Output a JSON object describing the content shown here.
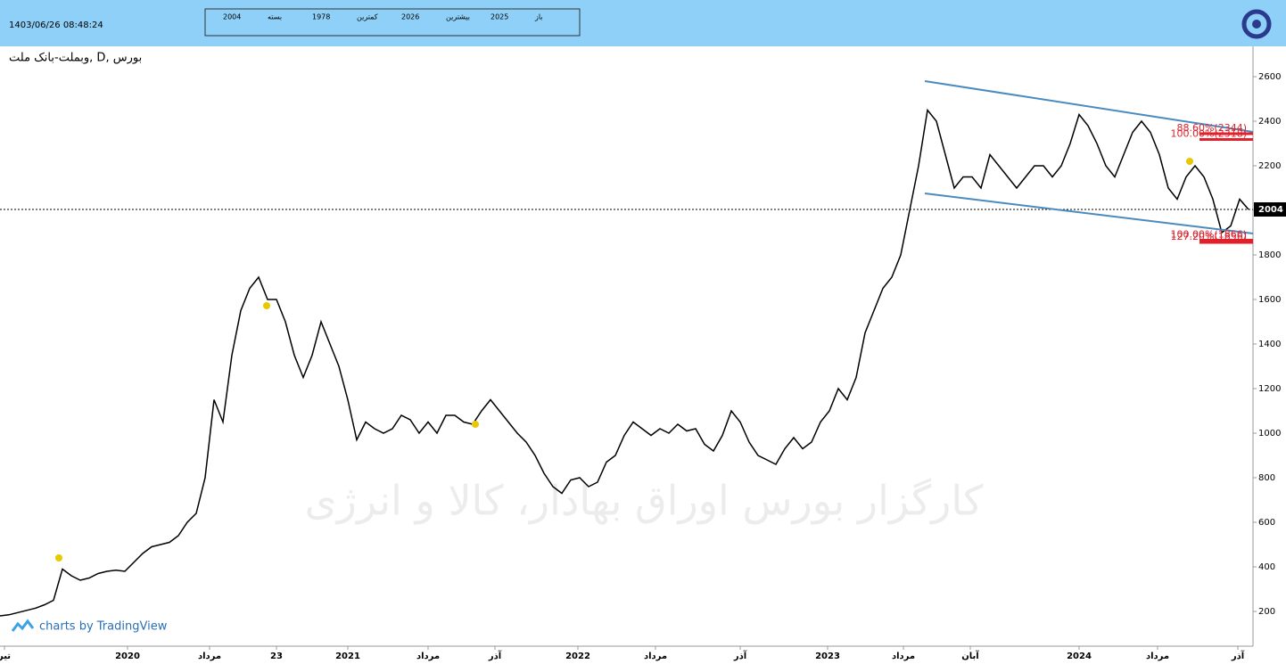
{
  "header": {
    "datetime": "1403/06/26 08:48:24",
    "fields": [
      "2004",
      "بسته",
      "1978",
      "کمترین",
      "2026",
      "بیشترین",
      "2025",
      "باز"
    ]
  },
  "chart_data": {
    "type": "line",
    "title": "وبملت-بانک ملت, D, بورس",
    "watermark": "کارگزار بورس اوراق بهادار، کالا و انرژی",
    "credit": "charts by TradingView",
    "x": [
      0,
      1,
      2,
      3,
      4,
      5,
      6,
      7,
      8,
      9,
      10,
      11,
      12,
      13,
      14,
      15,
      16,
      17,
      18,
      19,
      20,
      21,
      22,
      23,
      24,
      25,
      26,
      27,
      28,
      29,
      30,
      31,
      32,
      33,
      34,
      35,
      36,
      37,
      38,
      39,
      40,
      41,
      42,
      43,
      44,
      45,
      46,
      47,
      48,
      49,
      50,
      51,
      52,
      53,
      54,
      55,
      56,
      57,
      58,
      59,
      60,
      61,
      62,
      63,
      64,
      65,
      66,
      67,
      68,
      69,
      70,
      71,
      72,
      73,
      74,
      75,
      76,
      77,
      78,
      79,
      80,
      81,
      82,
      83,
      84,
      85,
      86,
      87,
      88,
      89,
      90,
      91,
      92,
      93,
      94,
      95,
      96,
      97,
      98,
      99,
      100,
      101,
      102,
      103,
      104,
      105,
      106,
      107,
      108,
      109,
      110,
      111,
      112,
      113,
      114,
      115,
      116,
      117,
      118,
      119,
      120,
      121,
      122,
      123,
      124,
      125,
      126,
      127,
      128,
      129,
      130,
      131,
      132,
      133,
      134,
      135,
      136,
      137,
      138,
      139,
      140
    ],
    "series": [
      {
        "name": "وبملت",
        "color": "#000000",
        "values": [
          180,
          185,
          195,
          205,
          215,
          230,
          250,
          390,
          360,
          340,
          350,
          370,
          380,
          385,
          380,
          420,
          460,
          490,
          500,
          510,
          540,
          600,
          640,
          800,
          1150,
          1050,
          1350,
          1550,
          1650,
          1700,
          1600,
          1600,
          1500,
          1350,
          1250,
          1350,
          1500,
          1400,
          1300,
          1150,
          970,
          1050,
          1020,
          1000,
          1020,
          1080,
          1060,
          1000,
          1050,
          1000,
          1080,
          1080,
          1050,
          1040,
          1100,
          1150,
          1100,
          1050,
          1000,
          960,
          900,
          820,
          760,
          730,
          790,
          800,
          760,
          780,
          870,
          900,
          990,
          1050,
          1020,
          990,
          1020,
          1000,
          1040,
          1010,
          1020,
          950,
          920,
          990,
          1100,
          1050,
          960,
          900,
          880,
          860,
          930,
          980,
          930,
          960,
          1050,
          1100,
          1200,
          1150,
          1250,
          1450,
          1550,
          1650,
          1700,
          1800,
          2000,
          2200,
          2450,
          2400,
          2250,
          2100,
          2150,
          2150,
          2100,
          2250,
          2200,
          2150,
          2100,
          2150,
          2200,
          2200,
          2150,
          2200,
          2300,
          2430,
          2380,
          2300,
          2200,
          2150,
          2250,
          2350,
          2400,
          2350,
          2250,
          2100,
          2050,
          2150,
          2200,
          2150,
          2050,
          1900,
          1930,
          2050,
          2004
        ]
      }
    ],
    "last_price": 2004,
    "markers": {
      "x": [
        6.6,
        29.9,
        53.3,
        133.4
      ],
      "values": [
        440,
        1572,
        1040,
        2220
      ],
      "color": "#e8c800"
    },
    "trend_lines": [
      {
        "x": [
          103.7,
          140.5
        ],
        "values": [
          2580,
          2352
        ],
        "color": "#4a8bbf"
      },
      {
        "x": [
          103.7,
          140.5
        ],
        "values": [
          2076,
          1896
        ],
        "color": "#4a8bbf"
      }
    ],
    "fib_levels": [
      {
        "value": 2344,
        "label": "88.60%(2344)"
      },
      {
        "value": 2318,
        "label": "100.00%(2318)"
      },
      {
        "value": 1866,
        "label": "100.00%(1866)"
      },
      {
        "value": 1856,
        "label": "127.20%(1856)"
      }
    ],
    "fib_color": "#e0202a",
    "xlim": [
      0,
      140.5
    ],
    "ylim": [
      44,
      2736
    ],
    "yticks": [
      200,
      400,
      600,
      800,
      1000,
      1200,
      1400,
      1600,
      1800,
      2000,
      2200,
      2400,
      2600
    ],
    "xticks": [
      {
        "value": 0.5,
        "label": "تیر"
      },
      {
        "value": 14.3,
        "label": "2020"
      },
      {
        "value": 23.5,
        "label": "مرداد"
      },
      {
        "value": 31,
        "label": "23"
      },
      {
        "value": 39,
        "label": "2021"
      },
      {
        "value": 48,
        "label": "مرداد"
      },
      {
        "value": 55.5,
        "label": "آذر"
      },
      {
        "value": 64.8,
        "label": "2022"
      },
      {
        "value": 73.5,
        "label": "مرداد"
      },
      {
        "value": 83,
        "label": "آذر"
      },
      {
        "value": 92.8,
        "label": "2023"
      },
      {
        "value": 101.3,
        "label": "مرداد"
      },
      {
        "value": 108.8,
        "label": "آبان"
      },
      {
        "value": 121,
        "label": "2024"
      },
      {
        "value": 129.8,
        "label": "مرداد"
      },
      {
        "value": 138.8,
        "label": "آذر"
      }
    ]
  }
}
